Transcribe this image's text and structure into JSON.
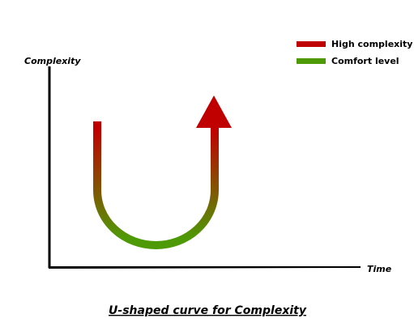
{
  "axes": {
    "y_label": "Complexity",
    "x_label": "Time"
  },
  "legend": [
    {
      "label": "High complexity",
      "color": "#c00000"
    },
    {
      "label": "Comfort level",
      "color": "#4e9a06"
    }
  ],
  "caption": "U-shaped curve for Complexity"
}
